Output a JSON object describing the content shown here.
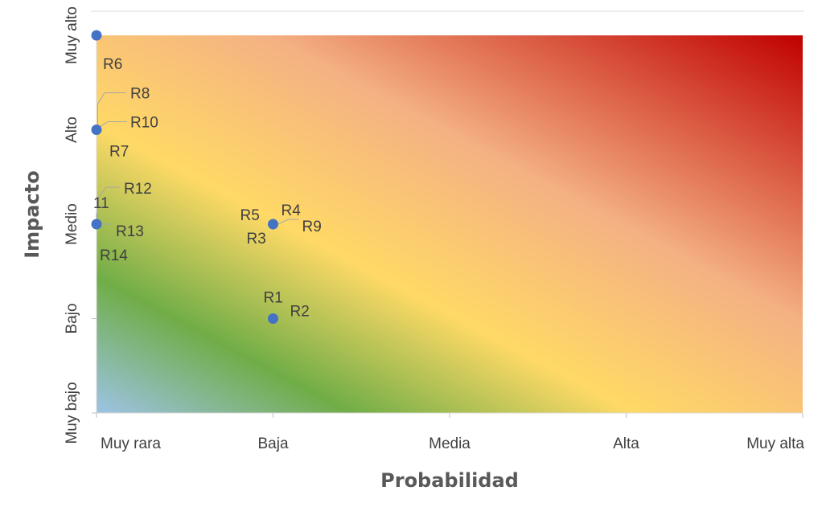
{
  "chart_data": {
    "type": "scatter",
    "title": "",
    "xlabel": "Probabilidad",
    "ylabel": "Impacto",
    "x_categories": [
      "Muy rara",
      "Baja",
      "Media",
      "Alta",
      "Muy alta"
    ],
    "y_categories": [
      "Muy bajo",
      "Bajo",
      "Medio",
      "Alto",
      "Muy alto"
    ],
    "xlim": [
      1,
      5
    ],
    "ylim": [
      1,
      5
    ],
    "grid": false,
    "marker_color": "#4472C4",
    "background_gradient": [
      "#9DC3E6",
      "#70AD47",
      "#FFD966",
      "#F4B183",
      "#C00000"
    ],
    "points": [
      {
        "label": "R6",
        "x": 1,
        "y": 5
      },
      {
        "label": "R8",
        "x": 1,
        "y": 4
      },
      {
        "label": "R10",
        "x": 1,
        "y": 4
      },
      {
        "label": "R7",
        "x": 1,
        "y": 4
      },
      {
        "label": "R12",
        "x": 1,
        "y": 3
      },
      {
        "label": "11",
        "x": 1,
        "y": 3
      },
      {
        "label": "R13",
        "x": 1,
        "y": 3
      },
      {
        "label": "R14",
        "x": 1,
        "y": 3
      },
      {
        "label": "R5",
        "x": 2,
        "y": 3
      },
      {
        "label": "R4",
        "x": 2,
        "y": 3
      },
      {
        "label": "R9",
        "x": 2,
        "y": 3
      },
      {
        "label": "R3",
        "x": 2,
        "y": 3
      },
      {
        "label": "R1",
        "x": 2,
        "y": 2
      },
      {
        "label": "R2",
        "x": 2,
        "y": 2
      }
    ]
  }
}
